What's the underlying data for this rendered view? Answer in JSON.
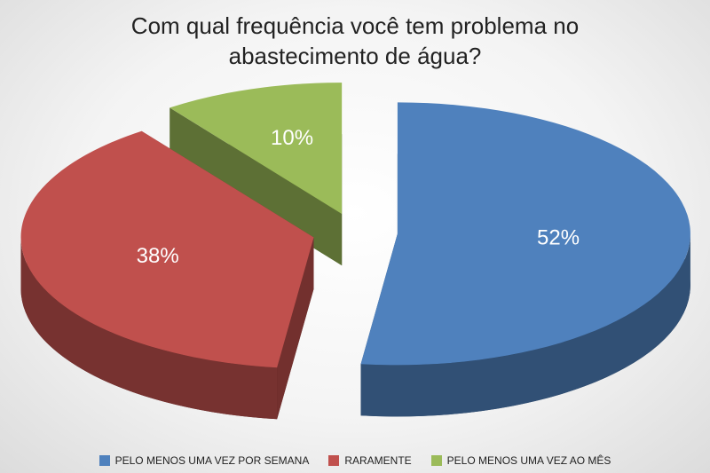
{
  "chart_data": {
    "type": "pie",
    "title": "Com qual frequência você tem problema no abastecimento de água?",
    "categories": [
      "PELO MENOS UMA VEZ POR SEMANA",
      "RARAMENTE",
      "PELO MENOS UMA VEZ AO MÊS"
    ],
    "values": [
      52,
      38,
      10
    ],
    "value_labels": [
      "52%",
      "38%",
      "10%"
    ],
    "colors": [
      "#4f81bd",
      "#c0504d",
      "#9bbb59"
    ],
    "legend": "bottom"
  }
}
